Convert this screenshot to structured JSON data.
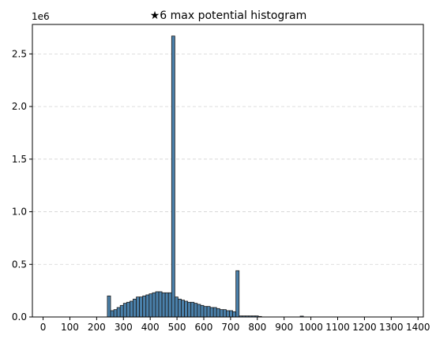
{
  "chart_data": {
    "type": "bar",
    "title": "★6 max potential histogram",
    "xlabel": "",
    "ylabel": "",
    "y_multiplier": "1e6",
    "xlim": [
      -40,
      1420
    ],
    "ylim": [
      0,
      2.78
    ],
    "grid": {
      "x": false,
      "y": true,
      "style": "dashed"
    },
    "legend": "none",
    "bar_color": "#4a80aa",
    "bar_edge_color": "#1a1a1a",
    "x_ticks": [
      0,
      100,
      200,
      300,
      400,
      500,
      600,
      700,
      800,
      900,
      1000,
      1100,
      1200,
      1300,
      1400
    ],
    "x_tick_labels": [
      "0",
      "100",
      "200",
      "300",
      "400",
      "500",
      "600",
      "700",
      "800",
      "900",
      "1000",
      "1100",
      "1200",
      "1300",
      "1400"
    ],
    "y_ticks": [
      0.0,
      0.5,
      1.0,
      1.5,
      2.0,
      2.5
    ],
    "y_tick_labels": [
      "0.0",
      "0.5",
      "1.0",
      "1.5",
      "2.0",
      "2.5"
    ],
    "bin_width": 12,
    "bin_starts": [
      240,
      252,
      264,
      276,
      288,
      300,
      312,
      324,
      336,
      348,
      360,
      372,
      384,
      396,
      408,
      420,
      432,
      444,
      456,
      468,
      480,
      492,
      504,
      516,
      528,
      540,
      552,
      564,
      576,
      588,
      600,
      612,
      624,
      636,
      648,
      660,
      672,
      684,
      696,
      708,
      720,
      732,
      744,
      756,
      768,
      780,
      792,
      804,
      960
    ],
    "values": [
      0.2,
      0.06,
      0.07,
      0.09,
      0.11,
      0.13,
      0.14,
      0.15,
      0.17,
      0.19,
      0.19,
      0.2,
      0.21,
      0.22,
      0.23,
      0.24,
      0.24,
      0.23,
      0.23,
      0.23,
      2.67,
      0.19,
      0.17,
      0.16,
      0.15,
      0.14,
      0.14,
      0.13,
      0.12,
      0.11,
      0.1,
      0.1,
      0.09,
      0.09,
      0.08,
      0.07,
      0.07,
      0.06,
      0.06,
      0.05,
      0.44,
      0.01,
      0.01,
      0.01,
      0.01,
      0.01,
      0.01,
      0.005,
      0.008
    ]
  }
}
